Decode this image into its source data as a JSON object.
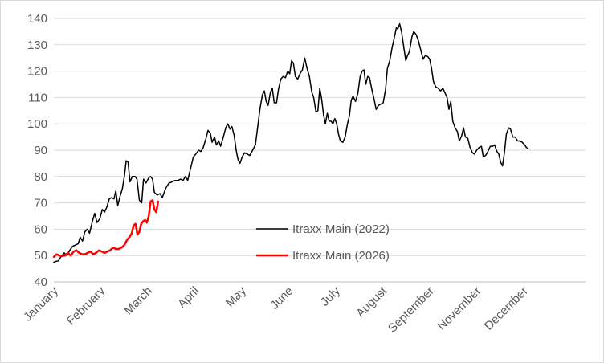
{
  "chart_data": {
    "type": "line",
    "title": "",
    "xlabel": "",
    "ylabel": "",
    "ylim": [
      40,
      140
    ],
    "yticks": [
      40,
      50,
      60,
      70,
      80,
      90,
      100,
      110,
      120,
      130,
      140
    ],
    "x_range_months": [
      0,
      12
    ],
    "month_labels": [
      {
        "label": "January",
        "pos": 0
      },
      {
        "label": "February",
        "pos": 1
      },
      {
        "label": "March",
        "pos": 2
      },
      {
        "label": "April",
        "pos": 3
      },
      {
        "label": "May",
        "pos": 4
      },
      {
        "label": "June",
        "pos": 5
      },
      {
        "label": "July",
        "pos": 6
      },
      {
        "label": "August",
        "pos": 7
      },
      {
        "label": "September",
        "pos": 8
      },
      {
        "label": "November",
        "pos": 9
      },
      {
        "label": "December",
        "pos": 10
      }
    ],
    "grid": true,
    "legend_position": "center",
    "series": [
      {
        "name": "Itraxx Main (2022)",
        "color": "#000000",
        "points": [
          [
            0.0,
            47.5
          ],
          [
            0.05,
            47.8
          ],
          [
            0.1,
            48.0
          ],
          [
            0.15,
            49.5
          ],
          [
            0.22,
            51.0
          ],
          [
            0.28,
            50.0
          ],
          [
            0.34,
            52.0
          ],
          [
            0.4,
            53.5
          ],
          [
            0.46,
            54.0
          ],
          [
            0.52,
            54.5
          ],
          [
            0.56,
            57.0
          ],
          [
            0.61,
            55.5
          ],
          [
            0.66,
            59.0
          ],
          [
            0.71,
            60.0
          ],
          [
            0.76,
            58.5
          ],
          [
            0.82,
            63.0
          ],
          [
            0.87,
            66.0
          ],
          [
            0.92,
            62.5
          ],
          [
            0.98,
            64.0
          ],
          [
            1.03,
            67.5
          ],
          [
            1.08,
            66.5
          ],
          [
            1.13,
            68.5
          ],
          [
            1.18,
            71.5
          ],
          [
            1.23,
            72.0
          ],
          [
            1.28,
            71.5
          ],
          [
            1.32,
            74.5
          ],
          [
            1.36,
            69.0
          ],
          [
            1.41,
            72.5
          ],
          [
            1.46,
            75.5
          ],
          [
            1.5,
            80.0
          ],
          [
            1.54,
            86.0
          ],
          [
            1.58,
            85.5
          ],
          [
            1.62,
            78.0
          ],
          [
            1.67,
            80.0
          ],
          [
            1.73,
            80.0
          ],
          [
            1.77,
            79.0
          ],
          [
            1.82,
            71.0
          ],
          [
            1.87,
            70.0
          ],
          [
            1.91,
            79.0
          ],
          [
            1.96,
            77.5
          ],
          [
            2.02,
            79.5
          ],
          [
            2.06,
            80.0
          ],
          [
            2.1,
            79.0
          ],
          [
            2.14,
            74.0
          ],
          [
            2.2,
            73.0
          ],
          [
            2.26,
            73.5
          ],
          [
            2.31,
            72.0
          ],
          [
            2.38,
            75.5
          ],
          [
            2.45,
            77.5
          ],
          [
            2.52,
            78.0
          ],
          [
            2.58,
            78.5
          ],
          [
            2.64,
            78.5
          ],
          [
            2.7,
            79.0
          ],
          [
            2.75,
            78.5
          ],
          [
            2.8,
            80.0
          ],
          [
            2.85,
            78.5
          ],
          [
            2.91,
            83.0
          ],
          [
            2.97,
            87.5
          ],
          [
            3.02,
            88.5
          ],
          [
            3.08,
            90.0
          ],
          [
            3.13,
            89.5
          ],
          [
            3.18,
            91.0
          ],
          [
            3.24,
            94.5
          ],
          [
            3.28,
            97.5
          ],
          [
            3.33,
            96.5
          ],
          [
            3.37,
            93.0
          ],
          [
            3.42,
            95.0
          ],
          [
            3.46,
            92.0
          ],
          [
            3.51,
            93.5
          ],
          [
            3.55,
            91.5
          ],
          [
            3.6,
            94.5
          ],
          [
            3.66,
            98.5
          ],
          [
            3.7,
            100.0
          ],
          [
            3.75,
            98.0
          ],
          [
            3.79,
            99.0
          ],
          [
            3.84,
            95.5
          ],
          [
            3.88,
            90.0
          ],
          [
            3.92,
            86.5
          ],
          [
            3.96,
            85.0
          ],
          [
            4.01,
            87.5
          ],
          [
            4.06,
            89.0
          ],
          [
            4.12,
            88.5
          ],
          [
            4.17,
            88.0
          ],
          [
            4.23,
            90.0
          ],
          [
            4.29,
            92.0
          ],
          [
            4.34,
            99.0
          ],
          [
            4.39,
            106.0
          ],
          [
            4.44,
            111.0
          ],
          [
            4.48,
            112.5
          ],
          [
            4.52,
            108.5
          ],
          [
            4.56,
            107.0
          ],
          [
            4.61,
            112.0
          ],
          [
            4.65,
            113.5
          ],
          [
            4.69,
            108.0
          ],
          [
            4.74,
            108.0
          ],
          [
            4.78,
            113.0
          ],
          [
            4.83,
            117.0
          ],
          [
            4.88,
            118.0
          ],
          [
            4.93,
            117.5
          ],
          [
            4.98,
            120.0
          ],
          [
            5.02,
            119.0
          ],
          [
            5.06,
            124.0
          ],
          [
            5.1,
            123.0
          ],
          [
            5.14,
            118.0
          ],
          [
            5.19,
            117.0
          ],
          [
            5.24,
            119.0
          ],
          [
            5.29,
            120.5
          ],
          [
            5.34,
            125.0
          ],
          [
            5.39,
            121.0
          ],
          [
            5.44,
            118.0
          ],
          [
            5.49,
            112.0
          ],
          [
            5.53,
            110.0
          ],
          [
            5.58,
            104.5
          ],
          [
            5.62,
            105.0
          ],
          [
            5.66,
            113.5
          ],
          [
            5.7,
            109.5
          ],
          [
            5.74,
            103.5
          ],
          [
            5.78,
            100.0
          ],
          [
            5.82,
            104.0
          ],
          [
            5.86,
            101.0
          ],
          [
            5.9,
            101.0
          ],
          [
            5.94,
            100.0
          ],
          [
            5.98,
            102.0
          ],
          [
            6.02,
            100.0
          ],
          [
            6.06,
            96.0
          ],
          [
            6.1,
            93.5
          ],
          [
            6.15,
            93.0
          ],
          [
            6.2,
            95.0
          ],
          [
            6.25,
            100.0
          ],
          [
            6.29,
            103.0
          ],
          [
            6.33,
            109.0
          ],
          [
            6.37,
            110.5
          ],
          [
            6.42,
            108.5
          ],
          [
            6.47,
            111.5
          ],
          [
            6.52,
            118.0
          ],
          [
            6.56,
            120.0
          ],
          [
            6.6,
            120.5
          ],
          [
            6.64,
            115.0
          ],
          [
            6.68,
            118.0
          ],
          [
            6.72,
            117.5
          ],
          [
            6.77,
            113.0
          ],
          [
            6.82,
            109.0
          ],
          [
            6.86,
            105.5
          ],
          [
            6.91,
            107.0
          ],
          [
            6.96,
            107.5
          ],
          [
            7.01,
            108.0
          ],
          [
            7.06,
            113.0
          ],
          [
            7.1,
            121.0
          ],
          [
            7.15,
            124.0
          ],
          [
            7.2,
            129.0
          ],
          [
            7.25,
            133.0
          ],
          [
            7.29,
            136.5
          ],
          [
            7.32,
            136.0
          ],
          [
            7.36,
            138.0
          ],
          [
            7.4,
            135.0
          ],
          [
            7.45,
            129.0
          ],
          [
            7.49,
            124.0
          ],
          [
            7.53,
            126.0
          ],
          [
            7.57,
            127.5
          ],
          [
            7.62,
            133.0
          ],
          [
            7.66,
            135.0
          ],
          [
            7.71,
            134.0
          ],
          [
            7.76,
            131.5
          ],
          [
            7.81,
            128.0
          ],
          [
            7.86,
            124.5
          ],
          [
            7.91,
            126.0
          ],
          [
            7.96,
            125.5
          ],
          [
            8.0,
            124.5
          ],
          [
            8.04,
            121.0
          ],
          [
            8.08,
            116.0
          ],
          [
            8.13,
            114.0
          ],
          [
            8.18,
            113.5
          ],
          [
            8.23,
            112.5
          ],
          [
            8.28,
            113.5
          ],
          [
            8.32,
            112.0
          ],
          [
            8.37,
            110.0
          ],
          [
            8.41,
            105.5
          ],
          [
            8.45,
            108.5
          ],
          [
            8.49,
            101.0
          ],
          [
            8.54,
            98.5
          ],
          [
            8.59,
            97.0
          ],
          [
            8.63,
            93.5
          ],
          [
            8.68,
            95.5
          ],
          [
            8.72,
            98.5
          ],
          [
            8.76,
            95.0
          ],
          [
            8.81,
            94.5
          ],
          [
            8.86,
            91.0
          ],
          [
            8.91,
            89.0
          ],
          [
            8.95,
            88.5
          ],
          [
            9.0,
            90.0
          ],
          [
            9.05,
            91.0
          ],
          [
            9.1,
            91.5
          ],
          [
            9.14,
            87.5
          ],
          [
            9.19,
            88.0
          ],
          [
            9.24,
            89.5
          ],
          [
            9.29,
            91.5
          ],
          [
            9.34,
            91.5
          ],
          [
            9.38,
            92.0
          ],
          [
            9.43,
            89.5
          ],
          [
            9.47,
            88.5
          ],
          [
            9.51,
            85.5
          ],
          [
            9.55,
            84.0
          ],
          [
            9.59,
            89.0
          ],
          [
            9.63,
            96.0
          ],
          [
            9.68,
            98.5
          ],
          [
            9.72,
            98.0
          ],
          [
            9.77,
            95.0
          ],
          [
            9.82,
            95.0
          ],
          [
            9.87,
            93.5
          ],
          [
            9.92,
            93.5
          ],
          [
            9.97,
            93.0
          ],
          [
            10.02,
            92.0
          ],
          [
            10.06,
            91.0
          ],
          [
            10.1,
            90.5
          ]
        ]
      },
      {
        "name": "Itraxx Main (2026)",
        "color": "#ff0000",
        "points": [
          [
            0.0,
            49.5
          ],
          [
            0.06,
            50.5
          ],
          [
            0.12,
            50.0
          ],
          [
            0.18,
            49.8
          ],
          [
            0.24,
            50.0
          ],
          [
            0.3,
            51.0
          ],
          [
            0.36,
            50.0
          ],
          [
            0.42,
            51.5
          ],
          [
            0.48,
            52.0
          ],
          [
            0.54,
            51.0
          ],
          [
            0.6,
            50.5
          ],
          [
            0.66,
            50.5
          ],
          [
            0.72,
            51.0
          ],
          [
            0.78,
            51.5
          ],
          [
            0.84,
            50.5
          ],
          [
            0.9,
            51.0
          ],
          [
            0.96,
            52.0
          ],
          [
            1.02,
            51.5
          ],
          [
            1.08,
            51.0
          ],
          [
            1.14,
            51.5
          ],
          [
            1.2,
            52.0
          ],
          [
            1.26,
            53.0
          ],
          [
            1.32,
            52.5
          ],
          [
            1.38,
            52.5
          ],
          [
            1.44,
            53.0
          ],
          [
            1.5,
            54.0
          ],
          [
            1.56,
            56.0
          ],
          [
            1.61,
            57.0
          ],
          [
            1.66,
            58.5
          ],
          [
            1.7,
            61.5
          ],
          [
            1.74,
            62.0
          ],
          [
            1.78,
            58.0
          ],
          [
            1.82,
            59.0
          ],
          [
            1.86,
            62.0
          ],
          [
            1.9,
            63.0
          ],
          [
            1.94,
            63.5
          ],
          [
            1.98,
            62.5
          ],
          [
            2.02,
            65.0
          ],
          [
            2.06,
            70.5
          ],
          [
            2.1,
            71.0
          ],
          [
            2.14,
            67.5
          ],
          [
            2.18,
            66.5
          ],
          [
            2.22,
            70.5
          ]
        ]
      }
    ]
  }
}
